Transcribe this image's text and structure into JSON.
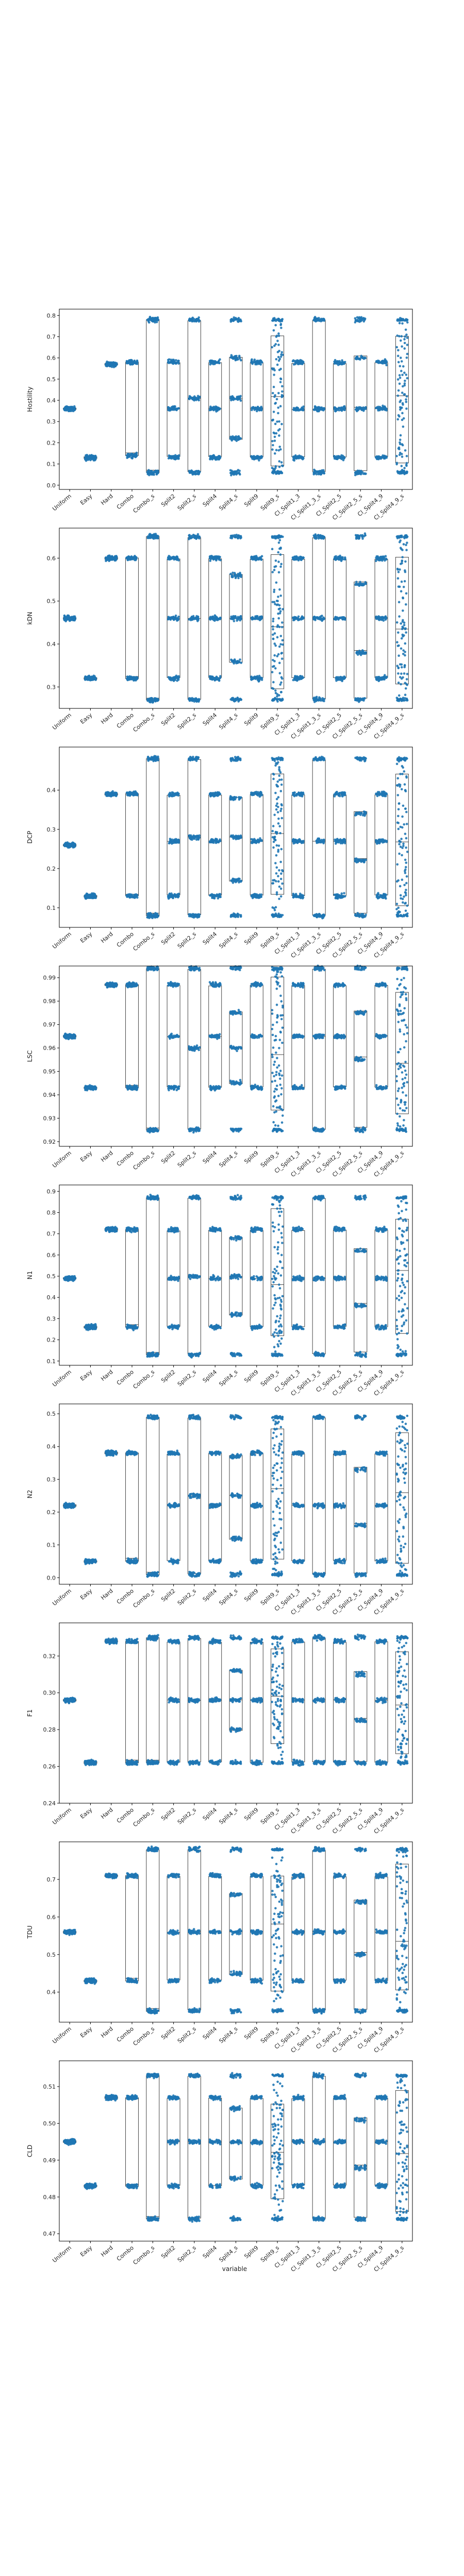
{
  "figure": {
    "xlabel": "variable",
    "categories": [
      "Uniform",
      "Easy",
      "Hard",
      "Combo",
      "Combo_s",
      "Split2",
      "Split2_s",
      "Split4",
      "Split4_s",
      "Split9",
      "Split9_s",
      "Cl_Split1_3",
      "Cl_Split1_3_s",
      "Cl_Split2_5",
      "Cl_Split2_5_s",
      "Cl_Split4_9",
      "Cl_Split4_9_s"
    ]
  },
  "colors": {
    "points": "#1f77b4",
    "box": "#444444",
    "axis": "#000000"
  },
  "chart_data": [
    {
      "type": "scatter",
      "ylabel": "Hostility",
      "ylim": [
        -0.02,
        0.83
      ],
      "yticks": [
        0.0,
        0.1,
        0.2,
        0.3,
        0.4,
        0.5,
        0.6,
        0.7,
        0.8
      ],
      "decimals": 1,
      "groups": [
        {
          "levels": [
            0.36
          ]
        },
        {
          "levels": [
            0.13
          ]
        },
        {
          "levels": [
            0.57
          ]
        },
        {
          "levels": [
            0.14,
            0.58
          ]
        },
        {
          "levels": [
            0.06,
            0.78
          ]
        },
        {
          "levels": [
            0.13,
            0.36,
            0.58
          ]
        },
        {
          "levels": [
            0.06,
            0.41,
            0.78
          ]
        },
        {
          "levels": [
            0.13,
            0.36,
            0.58
          ]
        },
        {
          "levels": [
            0.06,
            0.22,
            0.41,
            0.6,
            0.78
          ]
        },
        {
          "levels": [
            0.13,
            0.36,
            0.58
          ]
        },
        {
          "levels": [
            0.06,
            0.78
          ],
          "spread": true
        },
        {
          "levels": [
            0.13,
            0.36,
            0.58
          ]
        },
        {
          "levels": [
            0.06,
            0.36,
            0.78
          ]
        },
        {
          "levels": [
            0.13,
            0.36,
            0.58
          ]
        },
        {
          "levels": [
            0.06,
            0.36,
            0.6,
            0.78
          ]
        },
        {
          "levels": [
            0.13,
            0.36,
            0.58
          ]
        },
        {
          "levels": [
            0.06,
            0.78
          ],
          "spread": true
        }
      ]
    },
    {
      "type": "scatter",
      "ylabel": "kDN",
      "ylim": [
        0.25,
        0.67
      ],
      "yticks": [
        0.3,
        0.4,
        0.5,
        0.6
      ],
      "decimals": 1,
      "groups": [
        {
          "levels": [
            0.46
          ]
        },
        {
          "levels": [
            0.32
          ]
        },
        {
          "levels": [
            0.6
          ]
        },
        {
          "levels": [
            0.32,
            0.6
          ]
        },
        {
          "levels": [
            0.27,
            0.65
          ]
        },
        {
          "levels": [
            0.32,
            0.46,
            0.6
          ]
        },
        {
          "levels": [
            0.27,
            0.46,
            0.65
          ]
        },
        {
          "levels": [
            0.32,
            0.46,
            0.6
          ]
        },
        {
          "levels": [
            0.27,
            0.36,
            0.46,
            0.56,
            0.65
          ]
        },
        {
          "levels": [
            0.32,
            0.46,
            0.6
          ]
        },
        {
          "levels": [
            0.27,
            0.65
          ],
          "spread": true
        },
        {
          "levels": [
            0.32,
            0.46,
            0.6
          ]
        },
        {
          "levels": [
            0.27,
            0.46,
            0.65
          ]
        },
        {
          "levels": [
            0.32,
            0.46,
            0.6
          ]
        },
        {
          "levels": [
            0.27,
            0.38,
            0.54,
            0.65
          ]
        },
        {
          "levels": [
            0.32,
            0.46,
            0.6
          ]
        },
        {
          "levels": [
            0.27,
            0.65
          ],
          "spread": true
        }
      ]
    },
    {
      "type": "scatter",
      "ylabel": "DCP",
      "ylim": [
        0.05,
        0.51
      ],
      "yticks": [
        0.1,
        0.2,
        0.3,
        0.4
      ],
      "decimals": 1,
      "groups": [
        {
          "levels": [
            0.26
          ]
        },
        {
          "levels": [
            0.13
          ]
        },
        {
          "levels": [
            0.39
          ]
        },
        {
          "levels": [
            0.13,
            0.39
          ]
        },
        {
          "levels": [
            0.08,
            0.48
          ]
        },
        {
          "levels": [
            0.13,
            0.27,
            0.39
          ]
        },
        {
          "levels": [
            0.08,
            0.28,
            0.48
          ]
        },
        {
          "levels": [
            0.13,
            0.27,
            0.39
          ]
        },
        {
          "levels": [
            0.08,
            0.17,
            0.28,
            0.38,
            0.48
          ]
        },
        {
          "levels": [
            0.13,
            0.27,
            0.39
          ]
        },
        {
          "levels": [
            0.08,
            0.48
          ],
          "spread": true
        },
        {
          "levels": [
            0.13,
            0.27,
            0.39
          ]
        },
        {
          "levels": [
            0.08,
            0.27,
            0.48
          ]
        },
        {
          "levels": [
            0.13,
            0.27,
            0.39
          ]
        },
        {
          "levels": [
            0.08,
            0.22,
            0.34,
            0.48
          ]
        },
        {
          "levels": [
            0.13,
            0.27,
            0.39
          ]
        },
        {
          "levels": [
            0.08,
            0.48
          ],
          "spread": true
        }
      ]
    },
    {
      "type": "scatter",
      "ylabel": "LSC",
      "ylim": [
        0.918,
        0.995
      ],
      "yticks": [
        0.92,
        0.93,
        0.94,
        0.95,
        0.96,
        0.97,
        0.98,
        0.99
      ],
      "decimals": 2,
      "groups": [
        {
          "levels": [
            0.965
          ]
        },
        {
          "levels": [
            0.943
          ]
        },
        {
          "levels": [
            0.987
          ]
        },
        {
          "levels": [
            0.943,
            0.987
          ]
        },
        {
          "levels": [
            0.925,
            0.994
          ]
        },
        {
          "levels": [
            0.943,
            0.965,
            0.987
          ]
        },
        {
          "levels": [
            0.925,
            0.96,
            0.994
          ]
        },
        {
          "levels": [
            0.943,
            0.965,
            0.987
          ]
        },
        {
          "levels": [
            0.925,
            0.945,
            0.96,
            0.975,
            0.994
          ]
        },
        {
          "levels": [
            0.943,
            0.965,
            0.987
          ]
        },
        {
          "levels": [
            0.925,
            0.994
          ],
          "spread": true
        },
        {
          "levels": [
            0.943,
            0.965,
            0.987
          ]
        },
        {
          "levels": [
            0.925,
            0.965,
            0.994
          ]
        },
        {
          "levels": [
            0.943,
            0.965,
            0.987
          ]
        },
        {
          "levels": [
            0.925,
            0.955,
            0.975,
            0.994
          ]
        },
        {
          "levels": [
            0.943,
            0.965,
            0.987
          ]
        },
        {
          "levels": [
            0.925,
            0.994
          ],
          "spread": true
        }
      ]
    },
    {
      "type": "scatter",
      "ylabel": "N1",
      "ylim": [
        0.08,
        0.93
      ],
      "yticks": [
        0.1,
        0.2,
        0.3,
        0.4,
        0.5,
        0.6,
        0.7,
        0.8,
        0.9
      ],
      "decimals": 1,
      "groups": [
        {
          "levels": [
            0.49
          ]
        },
        {
          "levels": [
            0.26
          ]
        },
        {
          "levels": [
            0.72
          ]
        },
        {
          "levels": [
            0.26,
            0.72
          ]
        },
        {
          "levels": [
            0.13,
            0.87
          ]
        },
        {
          "levels": [
            0.26,
            0.49,
            0.72
          ]
        },
        {
          "levels": [
            0.13,
            0.5,
            0.87
          ]
        },
        {
          "levels": [
            0.26,
            0.49,
            0.72
          ]
        },
        {
          "levels": [
            0.13,
            0.32,
            0.5,
            0.68,
            0.87
          ]
        },
        {
          "levels": [
            0.26,
            0.49,
            0.72
          ]
        },
        {
          "levels": [
            0.13,
            0.87
          ],
          "spread": true
        },
        {
          "levels": [
            0.26,
            0.49,
            0.72
          ]
        },
        {
          "levels": [
            0.13,
            0.49,
            0.87
          ]
        },
        {
          "levels": [
            0.26,
            0.49,
            0.72
          ]
        },
        {
          "levels": [
            0.13,
            0.36,
            0.62,
            0.87
          ]
        },
        {
          "levels": [
            0.26,
            0.49,
            0.72
          ]
        },
        {
          "levels": [
            0.13,
            0.87
          ],
          "spread": true
        }
      ]
    },
    {
      "type": "scatter",
      "ylabel": "N2",
      "ylim": [
        -0.02,
        0.53
      ],
      "yticks": [
        0.0,
        0.1,
        0.2,
        0.3,
        0.4,
        0.5
      ],
      "decimals": 1,
      "groups": [
        {
          "levels": [
            0.22
          ]
        },
        {
          "levels": [
            0.05
          ]
        },
        {
          "levels": [
            0.38
          ]
        },
        {
          "levels": [
            0.05,
            0.38
          ]
        },
        {
          "levels": [
            0.01,
            0.49
          ]
        },
        {
          "levels": [
            0.05,
            0.22,
            0.38
          ]
        },
        {
          "levels": [
            0.01,
            0.25,
            0.49
          ]
        },
        {
          "levels": [
            0.05,
            0.22,
            0.38
          ]
        },
        {
          "levels": [
            0.01,
            0.12,
            0.25,
            0.37,
            0.49
          ]
        },
        {
          "levels": [
            0.05,
            0.22,
            0.38
          ]
        },
        {
          "levels": [
            0.01,
            0.49
          ],
          "spread": true
        },
        {
          "levels": [
            0.05,
            0.22,
            0.38
          ]
        },
        {
          "levels": [
            0.01,
            0.22,
            0.49
          ]
        },
        {
          "levels": [
            0.05,
            0.22,
            0.38
          ]
        },
        {
          "levels": [
            0.01,
            0.16,
            0.33,
            0.49
          ]
        },
        {
          "levels": [
            0.05,
            0.22,
            0.38
          ]
        },
        {
          "levels": [
            0.01,
            0.49
          ],
          "spread": true
        }
      ]
    },
    {
      "type": "scatter",
      "ylabel": "F1",
      "ylim": [
        0.24,
        0.338
      ],
      "yticks": [
        0.24,
        0.26,
        0.28,
        0.3,
        0.32
      ],
      "decimals": 2,
      "groups": [
        {
          "levels": [
            0.296
          ]
        },
        {
          "levels": [
            0.262
          ]
        },
        {
          "levels": [
            0.328
          ]
        },
        {
          "levels": [
            0.262,
            0.328
          ]
        },
        {
          "levels": [
            0.262,
            0.33
          ]
        },
        {
          "levels": [
            0.262,
            0.296,
            0.328
          ]
        },
        {
          "levels": [
            0.262,
            0.296,
            0.33
          ]
        },
        {
          "levels": [
            0.262,
            0.296,
            0.328
          ]
        },
        {
          "levels": [
            0.262,
            0.28,
            0.296,
            0.312,
            0.33
          ]
        },
        {
          "levels": [
            0.262,
            0.296,
            0.328
          ]
        },
        {
          "levels": [
            0.262,
            0.33
          ],
          "spread": true
        },
        {
          "levels": [
            0.262,
            0.296,
            0.328
          ]
        },
        {
          "levels": [
            0.262,
            0.296,
            0.33
          ]
        },
        {
          "levels": [
            0.262,
            0.296,
            0.328
          ]
        },
        {
          "levels": [
            0.262,
            0.285,
            0.31,
            0.33
          ]
        },
        {
          "levels": [
            0.262,
            0.296,
            0.328
          ]
        },
        {
          "levels": [
            0.262,
            0.33
          ],
          "spread": true
        }
      ]
    },
    {
      "type": "scatter",
      "ylabel": "TDU",
      "ylim": [
        0.32,
        0.8
      ],
      "yticks": [
        0.4,
        0.5,
        0.6,
        0.7
      ],
      "decimals": 1,
      "groups": [
        {
          "levels": [
            0.56
          ]
        },
        {
          "levels": [
            0.43
          ]
        },
        {
          "levels": [
            0.71
          ]
        },
        {
          "levels": [
            0.43,
            0.71
          ]
        },
        {
          "levels": [
            0.35,
            0.78
          ]
        },
        {
          "levels": [
            0.43,
            0.56,
            0.71
          ]
        },
        {
          "levels": [
            0.35,
            0.56,
            0.78
          ]
        },
        {
          "levels": [
            0.43,
            0.56,
            0.71
          ]
        },
        {
          "levels": [
            0.35,
            0.45,
            0.56,
            0.66,
            0.78
          ]
        },
        {
          "levels": [
            0.43,
            0.56,
            0.71
          ]
        },
        {
          "levels": [
            0.35,
            0.78
          ],
          "spread": true
        },
        {
          "levels": [
            0.43,
            0.56,
            0.71
          ]
        },
        {
          "levels": [
            0.35,
            0.56,
            0.78
          ]
        },
        {
          "levels": [
            0.43,
            0.56,
            0.71
          ]
        },
        {
          "levels": [
            0.35,
            0.5,
            0.64,
            0.78
          ]
        },
        {
          "levels": [
            0.43,
            0.56,
            0.71
          ]
        },
        {
          "levels": [
            0.35,
            0.78
          ],
          "spread": true
        }
      ]
    },
    {
      "type": "scatter",
      "ylabel": "CLD",
      "ylim": [
        0.468,
        0.517
      ],
      "yticks": [
        0.47,
        0.48,
        0.49,
        0.5,
        0.51
      ],
      "decimals": 2,
      "groups": [
        {
          "levels": [
            0.495
          ]
        },
        {
          "levels": [
            0.483
          ]
        },
        {
          "levels": [
            0.507
          ]
        },
        {
          "levels": [
            0.483,
            0.507
          ]
        },
        {
          "levels": [
            0.474,
            0.513
          ]
        },
        {
          "levels": [
            0.483,
            0.495,
            0.507
          ]
        },
        {
          "levels": [
            0.474,
            0.495,
            0.513
          ]
        },
        {
          "levels": [
            0.483,
            0.495,
            0.507
          ]
        },
        {
          "levels": [
            0.474,
            0.485,
            0.495,
            0.504,
            0.513
          ]
        },
        {
          "levels": [
            0.483,
            0.495,
            0.507
          ]
        },
        {
          "levels": [
            0.474,
            0.513
          ],
          "spread": true
        },
        {
          "levels": [
            0.483,
            0.495,
            0.507
          ]
        },
        {
          "levels": [
            0.474,
            0.495,
            0.513
          ]
        },
        {
          "levels": [
            0.483,
            0.495,
            0.507
          ]
        },
        {
          "levels": [
            0.474,
            0.488,
            0.501,
            0.513
          ]
        },
        {
          "levels": [
            0.483,
            0.495,
            0.507
          ]
        },
        {
          "levels": [
            0.474,
            0.513
          ],
          "spread": true
        }
      ]
    }
  ]
}
